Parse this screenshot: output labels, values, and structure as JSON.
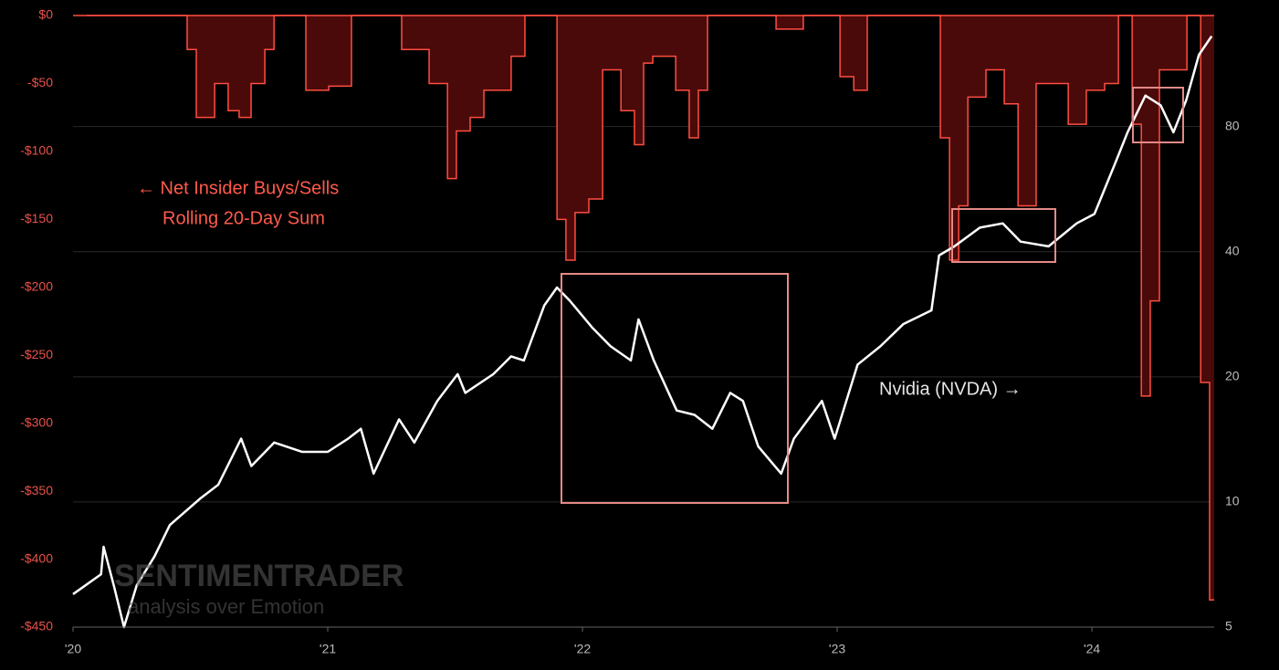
{
  "chart_data": {
    "type": "line",
    "annotations": [
      "← Net Insider Buys/Sells",
      "Rolling 20-Day Sum",
      "Nvidia (NVDA) →"
    ],
    "watermark": [
      "SENTIMENTRADER",
      "analysis over Emotion"
    ],
    "xlim": [
      2020,
      2024.48
    ],
    "xticks": [
      {
        "value": 2020,
        "label": "'20"
      },
      {
        "value": 2021,
        "label": "'21"
      },
      {
        "value": 2022,
        "label": "'22"
      },
      {
        "value": 2023,
        "label": "'23"
      },
      {
        "value": 2024,
        "label": "'24"
      }
    ],
    "ylim": [
      -450,
      0
    ],
    "yticks": [
      {
        "value": 0,
        "label": "$0"
      },
      {
        "value": -50,
        "label": "-$50"
      },
      {
        "value": -100,
        "label": "-$100"
      },
      {
        "value": -150,
        "label": "-$150"
      },
      {
        "value": -200,
        "label": "-$200"
      },
      {
        "value": -250,
        "label": "-$250"
      },
      {
        "value": -300,
        "label": "-$300"
      },
      {
        "value": -350,
        "label": "-$350"
      },
      {
        "value": -400,
        "label": "-$400"
      },
      {
        "value": -450,
        "label": "-$450"
      }
    ],
    "y2lim": [
      5,
      148
    ],
    "y2ticks": [
      5,
      10,
      20,
      40,
      80
    ],
    "y2log": true,
    "grid": true,
    "series": [
      {
        "color": "#ff4d42",
        "fill": "#4a0a0a",
        "step": true,
        "x": [
          2020.0,
          2020.448,
          2020.484,
          2020.556,
          2020.609,
          2020.652,
          2020.699,
          2020.753,
          2020.789,
          2020.914,
          2021.004,
          2021.093,
          2021.29,
          2021.398,
          2021.47,
          2021.505,
          2021.559,
          2021.613,
          2021.72,
          2021.774,
          2021.9,
          2021.935,
          2021.971,
          2022.025,
          2022.079,
          2022.151,
          2022.204,
          2022.24,
          2022.276,
          2022.366,
          2022.419,
          2022.455,
          2022.491,
          2022.76,
          2022.867,
          2023.011,
          2023.065,
          2023.118,
          2023.405,
          2023.441,
          2023.477,
          2023.513,
          2023.584,
          2023.656,
          2023.71,
          2023.781,
          2023.907,
          2023.978,
          2024.05,
          2024.104,
          2024.158,
          2024.194,
          2024.229,
          2024.265,
          2024.373,
          2024.427,
          2024.462,
          2024.48
        ],
        "values": [
          0,
          -25,
          -75,
          -50,
          -70,
          -75,
          -50,
          -25,
          0,
          -55,
          -52,
          0,
          -25,
          -50,
          -120,
          -85,
          -75,
          -55,
          -30,
          0,
          -150,
          -180,
          -145,
          -135,
          -40,
          -70,
          -95,
          -35,
          -30,
          -55,
          -90,
          -55,
          0,
          -10,
          0,
          -45,
          -55,
          0,
          -90,
          -180,
          -140,
          -60,
          -40,
          -65,
          -140,
          -50,
          -80,
          -55,
          -50,
          0,
          -80,
          -280,
          -210,
          -40,
          0,
          -270,
          -430,
          -430
        ]
      },
      {
        "color": "#ffffff",
        "axis": "y2",
        "x": [
          2020.0,
          2020.11,
          2020.12,
          2020.16,
          2020.2,
          2020.25,
          2020.32,
          2020.38,
          2020.5,
          2020.57,
          2020.66,
          2020.7,
          2020.79,
          2020.9,
          2021.0,
          2021.08,
          2021.13,
          2021.18,
          2021.22,
          2021.28,
          2021.34,
          2021.43,
          2021.51,
          2021.54,
          2021.65,
          2021.72,
          2021.77,
          2021.85,
          2021.9,
          2021.95,
          2022.04,
          2022.11,
          2022.19,
          2022.22,
          2022.28,
          2022.37,
          2022.44,
          2022.51,
          2022.58,
          2022.63,
          2022.69,
          2022.78,
          2022.83,
          2022.94,
          2022.99,
          2023.08,
          2023.17,
          2023.26,
          2023.37,
          2023.4,
          2023.46,
          2023.56,
          2023.65,
          2023.72,
          2023.83,
          2023.94,
          2024.01,
          2024.09,
          2024.14,
          2024.21,
          2024.27,
          2024.32,
          2024.37,
          2024.42,
          2024.47
        ],
        "values": [
          6.0,
          6.7,
          7.8,
          6.3,
          5.0,
          6.3,
          7.4,
          8.8,
          10.2,
          11.0,
          14.2,
          12.2,
          13.9,
          13.2,
          13.2,
          14.2,
          15.0,
          11.7,
          13.2,
          15.8,
          13.9,
          17.5,
          20.3,
          18.3,
          20.3,
          22.4,
          21.9,
          29.7,
          32.8,
          30.5,
          26.2,
          23.7,
          21.9,
          27.5,
          21.9,
          16.6,
          16.2,
          15.0,
          18.3,
          17.5,
          13.6,
          11.7,
          14.2,
          17.5,
          14.2,
          21.4,
          23.7,
          26.8,
          28.9,
          39.2,
          41.2,
          45.7,
          46.8,
          42.3,
          41.2,
          46.8,
          49.3,
          65,
          77.5,
          95,
          90,
          77.5,
          92.5,
          119,
          132
        ]
      }
    ]
  }
}
